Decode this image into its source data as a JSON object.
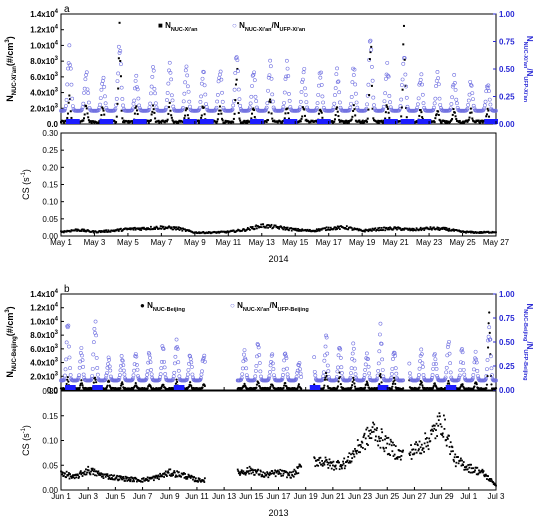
{
  "colors": {
    "black": "#000000",
    "blue": "#2a2ad6",
    "blue_light": "#6f6fe0",
    "marker_bar": "#1c1cff"
  },
  "panels": [
    {
      "letter": "a",
      "year": "2014",
      "left_axis": {
        "label_main": "N",
        "label_sub": "NUC-Xi'an",
        "label_unit": "(#/cm",
        "label_unit_sup": "3",
        "label_unit_end": ")",
        "exponent_base": "10",
        "exponent": "4",
        "ticks": [
          "0.0",
          "2.0x10",
          "4.0x10",
          "6.0x10",
          "8.0x10",
          "1.0x10",
          "1.2x10",
          "1.4x10"
        ],
        "tick_sups": [
          "",
          "3",
          "3",
          "3",
          "3",
          "4",
          "4",
          "4"
        ],
        "values": [
          0,
          2000,
          4000,
          6000,
          8000,
          10000,
          12000,
          14000
        ]
      },
      "right_axis": {
        "label_top": "N",
        "label_top_sub": "NUC-Xi'an",
        "label_bottom": "/N",
        "label_bottom_sub": "UFP-Xi'an",
        "ticks": [
          "0.00",
          "0.25",
          "0.50",
          "0.75",
          "1.00"
        ]
      },
      "legend": [
        {
          "symbol": "■",
          "text": "N",
          "sub": "NUC-Xi'an"
        },
        {
          "symbol": "○",
          "text": "N",
          "sub": "NUC-Xi'an",
          "text2": "/N",
          "sub2": "UFP-Xi'an"
        }
      ],
      "cs_axis": {
        "label": "CS (s",
        "label_sup": "-1",
        "label_end": ")",
        "ticks": [
          "0.00",
          "0.05",
          "0.10",
          "0.15",
          "0.20",
          "0.25",
          "0.30"
        ]
      },
      "x_ticks": [
        "May 1",
        "May 3",
        "May 5",
        "May 7",
        "May 9",
        "May 11",
        "May 13",
        "May 15",
        "May 17",
        "May 19",
        "May 21",
        "May 23",
        "May 25",
        "May 27"
      ]
    },
    {
      "letter": "b",
      "year": "2013",
      "left_axis": {
        "label_main": "N",
        "label_sub": "NUC-Beijing",
        "label_unit": "(#/cm",
        "label_unit_sup": "3",
        "label_unit_end": ")",
        "ticks": [
          "0.0",
          "2.0x10",
          "4.0x10",
          "6.0x10",
          "8.0x10",
          "1.0x10",
          "1.2x10",
          "1.4x10"
        ],
        "tick_sups": [
          "",
          "3",
          "3",
          "3",
          "3",
          "4",
          "4",
          "4"
        ],
        "values": [
          0,
          2000,
          4000,
          6000,
          8000,
          10000,
          12000,
          14000
        ]
      },
      "right_axis": {
        "label_top": "N",
        "label_top_sub": "NUC-Beijing",
        "label_bottom": "/N",
        "label_bottom_sub": "UFP-Beijing",
        "ticks": [
          "0.00",
          "0.25",
          "0.50",
          "0.75",
          "1.00"
        ]
      },
      "legend": [
        {
          "symbol": "●",
          "text": "N",
          "sub": "NUC-Beijing"
        },
        {
          "symbol": "○",
          "text": "N",
          "sub": "NUC-Xi'an",
          "text2": "/N",
          "sub2": "UFP-Beijing"
        }
      ],
      "cs_axis": {
        "label": "CS (s",
        "label_sup": "-1",
        "label_end": ")",
        "ticks": [
          "0.00",
          "0.05",
          "0.10",
          "0.15",
          "0.20"
        ]
      },
      "x_ticks": [
        "Jun 1",
        "Jun 3",
        "Jun 5",
        "Jun 7",
        "Jun 9",
        "Jun 11",
        "Jun 13",
        "Jun 15",
        "Jun 17",
        "Jun 19",
        "Jun 21",
        "Jun 23",
        "Jun 25",
        "Jun 27",
        "Jun 29",
        "Jul 1",
        "Jul 3"
      ]
    }
  ],
  "chart_data": [
    {
      "type": "scatter",
      "panel": "a-top",
      "xlabel": "2014",
      "x_range": [
        "May 1",
        "May 27"
      ],
      "ylim": [
        0,
        14000
      ],
      "y2lim": [
        0,
        1.0
      ],
      "series": [
        {
          "name": "NNUC-Xi'an",
          "axis": "left",
          "marker": "filled square",
          "daily_peak": [
            4000,
            3000,
            2500,
            14000,
            2500,
            3000,
            2800,
            2500,
            2600,
            2400,
            9000,
            2500,
            3500,
            3000,
            2800,
            2600,
            2500,
            2600,
            12000,
            3000,
            14000,
            2500,
            2300,
            2200,
            2000,
            2100,
            2000
          ],
          "baseline": 300
        },
        {
          "name": "NNUC-Xi'an/NUFP-Xi'an",
          "axis": "right",
          "marker": "open circle",
          "daily_peak": [
            0.72,
            0.53,
            0.47,
            0.78,
            0.44,
            0.53,
            0.6,
            0.55,
            0.52,
            0.55,
            0.7,
            0.55,
            0.58,
            0.6,
            0.55,
            0.52,
            0.53,
            0.55,
            0.9,
            0.58,
            0.72,
            0.5,
            0.48,
            0.45,
            0.42,
            0.4,
            0.4
          ],
          "baseline": 0.12
        }
      ],
      "blue_day_markers": [
        "May 1",
        "May 3",
        "May 5",
        "May 8",
        "May 9",
        "May 12",
        "May 14",
        "May 16",
        "May 20",
        "May 21",
        "May 22",
        "May 26"
      ]
    },
    {
      "type": "line",
      "panel": "a-bottom",
      "xlabel": "2014",
      "ylabel": "CS (s-1)",
      "ylim": [
        0,
        0.3
      ],
      "x_days": [
        0,
        1,
        2,
        3,
        4,
        5,
        6,
        7,
        8,
        9,
        10,
        11,
        12,
        13,
        14,
        15,
        16,
        17,
        18,
        19,
        20,
        21,
        22,
        23,
        24,
        25,
        26
      ],
      "values": [
        0.012,
        0.018,
        0.012,
        0.015,
        0.02,
        0.022,
        0.025,
        0.022,
        0.01,
        0.01,
        0.012,
        0.018,
        0.03,
        0.025,
        0.018,
        0.015,
        0.022,
        0.025,
        0.015,
        0.02,
        0.022,
        0.018,
        0.022,
        0.02,
        0.012,
        0.01,
        0.012
      ]
    },
    {
      "type": "scatter",
      "panel": "b-top",
      "xlabel": "2013",
      "x_range": [
        "Jun 1",
        "Jul 3"
      ],
      "ylim": [
        0,
        14000
      ],
      "y2lim": [
        0,
        1.0
      ],
      "gaps": [
        [
          10.6,
          12.6
        ],
        [
          17.7,
          18.6
        ],
        [
          25.2,
          25.6
        ]
      ],
      "series": [
        {
          "name": "NNUC-Beijing",
          "axis": "left",
          "marker": "filled circle",
          "daily_peak": [
            2000,
            1500,
            2500,
            1500,
            1200,
            1000,
            900,
            1000,
            1500,
            1200,
            1000,
            0,
            0,
            900,
            1500,
            1000,
            1100,
            800,
            4000,
            3000,
            2500,
            2000,
            1500,
            2500,
            2000,
            8000,
            1500,
            1200,
            1500,
            1000,
            1500,
            13500,
            13000
          ],
          "baseline": 200
        },
        {
          "name": "NNUC-Xi'an/NUFP-Beijing",
          "axis": "right",
          "marker": "open circle",
          "daily_peak": [
            0.75,
            0.45,
            0.8,
            0.35,
            0.4,
            0.38,
            0.42,
            0.5,
            0.6,
            0.45,
            0.4,
            0,
            0,
            0.45,
            0.6,
            0.4,
            0.45,
            0.3,
            0.7,
            0.62,
            0.55,
            0.5,
            0.45,
            0.7,
            0.5,
            0.6,
            0.45,
            0.4,
            0.55,
            0.45,
            0.4,
            0.75,
            0.6
          ],
          "baseline": 0.1
        }
      ],
      "blue_day_markers": [
        "Jun 1",
        "Jun 3",
        "Jun 9",
        "Jun 19",
        "Jun 24",
        "Jun 29"
      ]
    },
    {
      "type": "line",
      "panel": "b-bottom",
      "xlabel": "2013",
      "ylabel": "CS (s-1)",
      "ylim": [
        0,
        0.2
      ],
      "gaps": [
        [
          10.6,
          12.6
        ],
        [
          17.7,
          18.6
        ],
        [
          25.2,
          25.6
        ]
      ],
      "x_days": [
        0,
        1,
        2,
        3,
        4,
        5,
        6,
        7,
        8,
        9,
        10,
        11,
        12,
        13,
        14,
        15,
        16,
        17,
        18,
        19,
        20,
        21,
        22,
        23,
        24,
        25,
        26,
        27,
        28,
        29,
        30,
        31,
        32
      ],
      "values": [
        0.035,
        0.025,
        0.04,
        0.03,
        0.025,
        0.022,
        0.02,
        0.025,
        0.035,
        0.03,
        0.02,
        null,
        null,
        0.035,
        0.04,
        0.03,
        0.035,
        0.03,
        0.055,
        0.06,
        0.05,
        0.055,
        0.09,
        0.12,
        0.09,
        0.07,
        0.08,
        0.1,
        0.14,
        0.06,
        0.045,
        0.035,
        0.01
      ]
    }
  ]
}
